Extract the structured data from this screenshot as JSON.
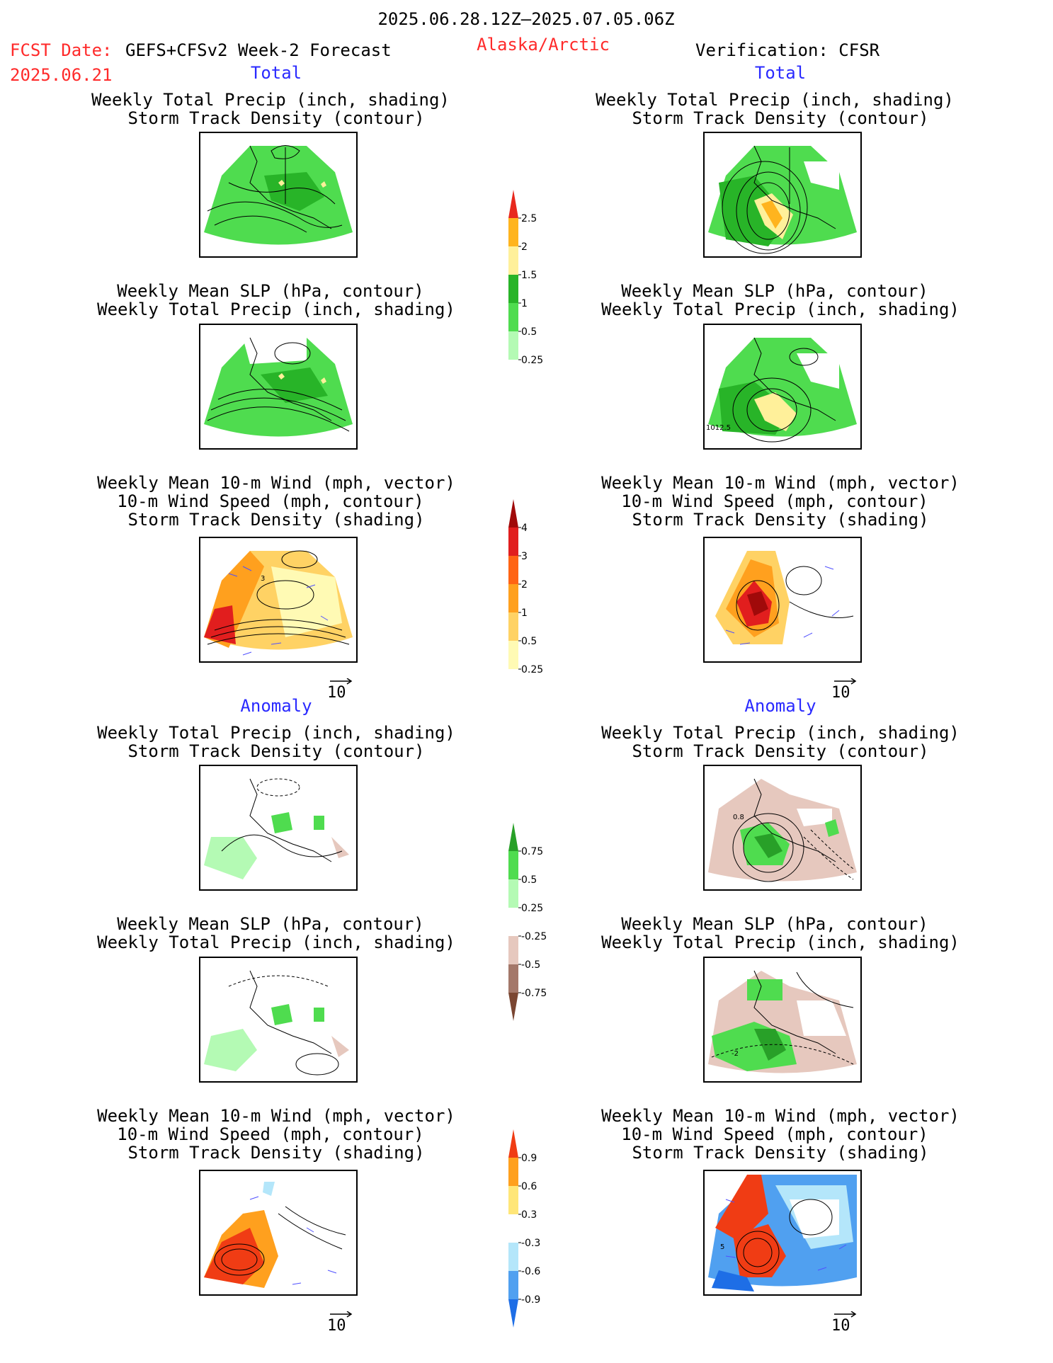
{
  "header": {
    "date_range": "2025.06.28.12Z–2025.07.05.06Z",
    "fcst_label": "FCST Date:",
    "model": "GEFS+CFSv2 Week-2 Forecast",
    "fcst_date": "2025.06.21",
    "region": "Alaska/Arctic",
    "verification": "Verification: CFSR"
  },
  "sections": {
    "total": "Total",
    "anomaly": "Anomaly"
  },
  "titles": {
    "precip_storm": [
      "Weekly Total Precip (inch, shading)",
      "Storm Track Density (contour)"
    ],
    "slp_precip": [
      "Weekly Mean SLP (hPa, contour)",
      "Weekly Total Precip (inch, shading)"
    ],
    "wind_storm": [
      "Weekly Mean 10-m Wind (mph, vector)",
      "10-m Wind Speed (mph, contour)",
      "Storm Track Density (shading)"
    ]
  },
  "vector_key": "10",
  "panel_labels": {
    "verif_slp_total": "1012.5",
    "wind_fcst_total": "3",
    "verif_precip_anom": "0.8",
    "verif_slp_anom": "-2",
    "verif_wind_anom": "5"
  },
  "chart_data": [
    {
      "type": "heatmap",
      "name": "precip_total_colorbar",
      "levels": [
        "0.25",
        "0.5",
        "1",
        "1.5",
        "2",
        "2.5"
      ],
      "colors": [
        "#ffffff",
        "#b4fab4",
        "#4fdc4f",
        "#28b428",
        "#fff09a",
        "#ffb41e",
        "#e8281e"
      ]
    },
    {
      "type": "heatmap",
      "name": "storm_density_total_colorbar",
      "levels": [
        "0.25",
        "0.5",
        "1",
        "2",
        "3",
        "4"
      ],
      "colors": [
        "#ffffff",
        "#fffab4",
        "#ffd264",
        "#ffa01e",
        "#ff6414",
        "#e11e1e",
        "#a00a0a"
      ]
    },
    {
      "type": "heatmap",
      "name": "precip_anomaly_colorbar",
      "levels": [
        "-0.75",
        "-0.5",
        "-0.25",
        "0.25",
        "0.5",
        "0.75"
      ],
      "colors": [
        "#7a4632",
        "#a4786a",
        "#e6c8be",
        "#ffffff",
        "#b4fab4",
        "#4fdc4f",
        "#28a028"
      ]
    },
    {
      "type": "heatmap",
      "name": "storm_density_anomaly_colorbar",
      "levels": [
        "-0.9",
        "-0.6",
        "-0.3",
        "0.3",
        "0.6",
        "0.9"
      ],
      "colors": [
        "#1e6ee6",
        "#50a0f0",
        "#b4e6fa",
        "#ffffff",
        "#ffe678",
        "#ffa01e",
        "#f03c14"
      ]
    }
  ]
}
